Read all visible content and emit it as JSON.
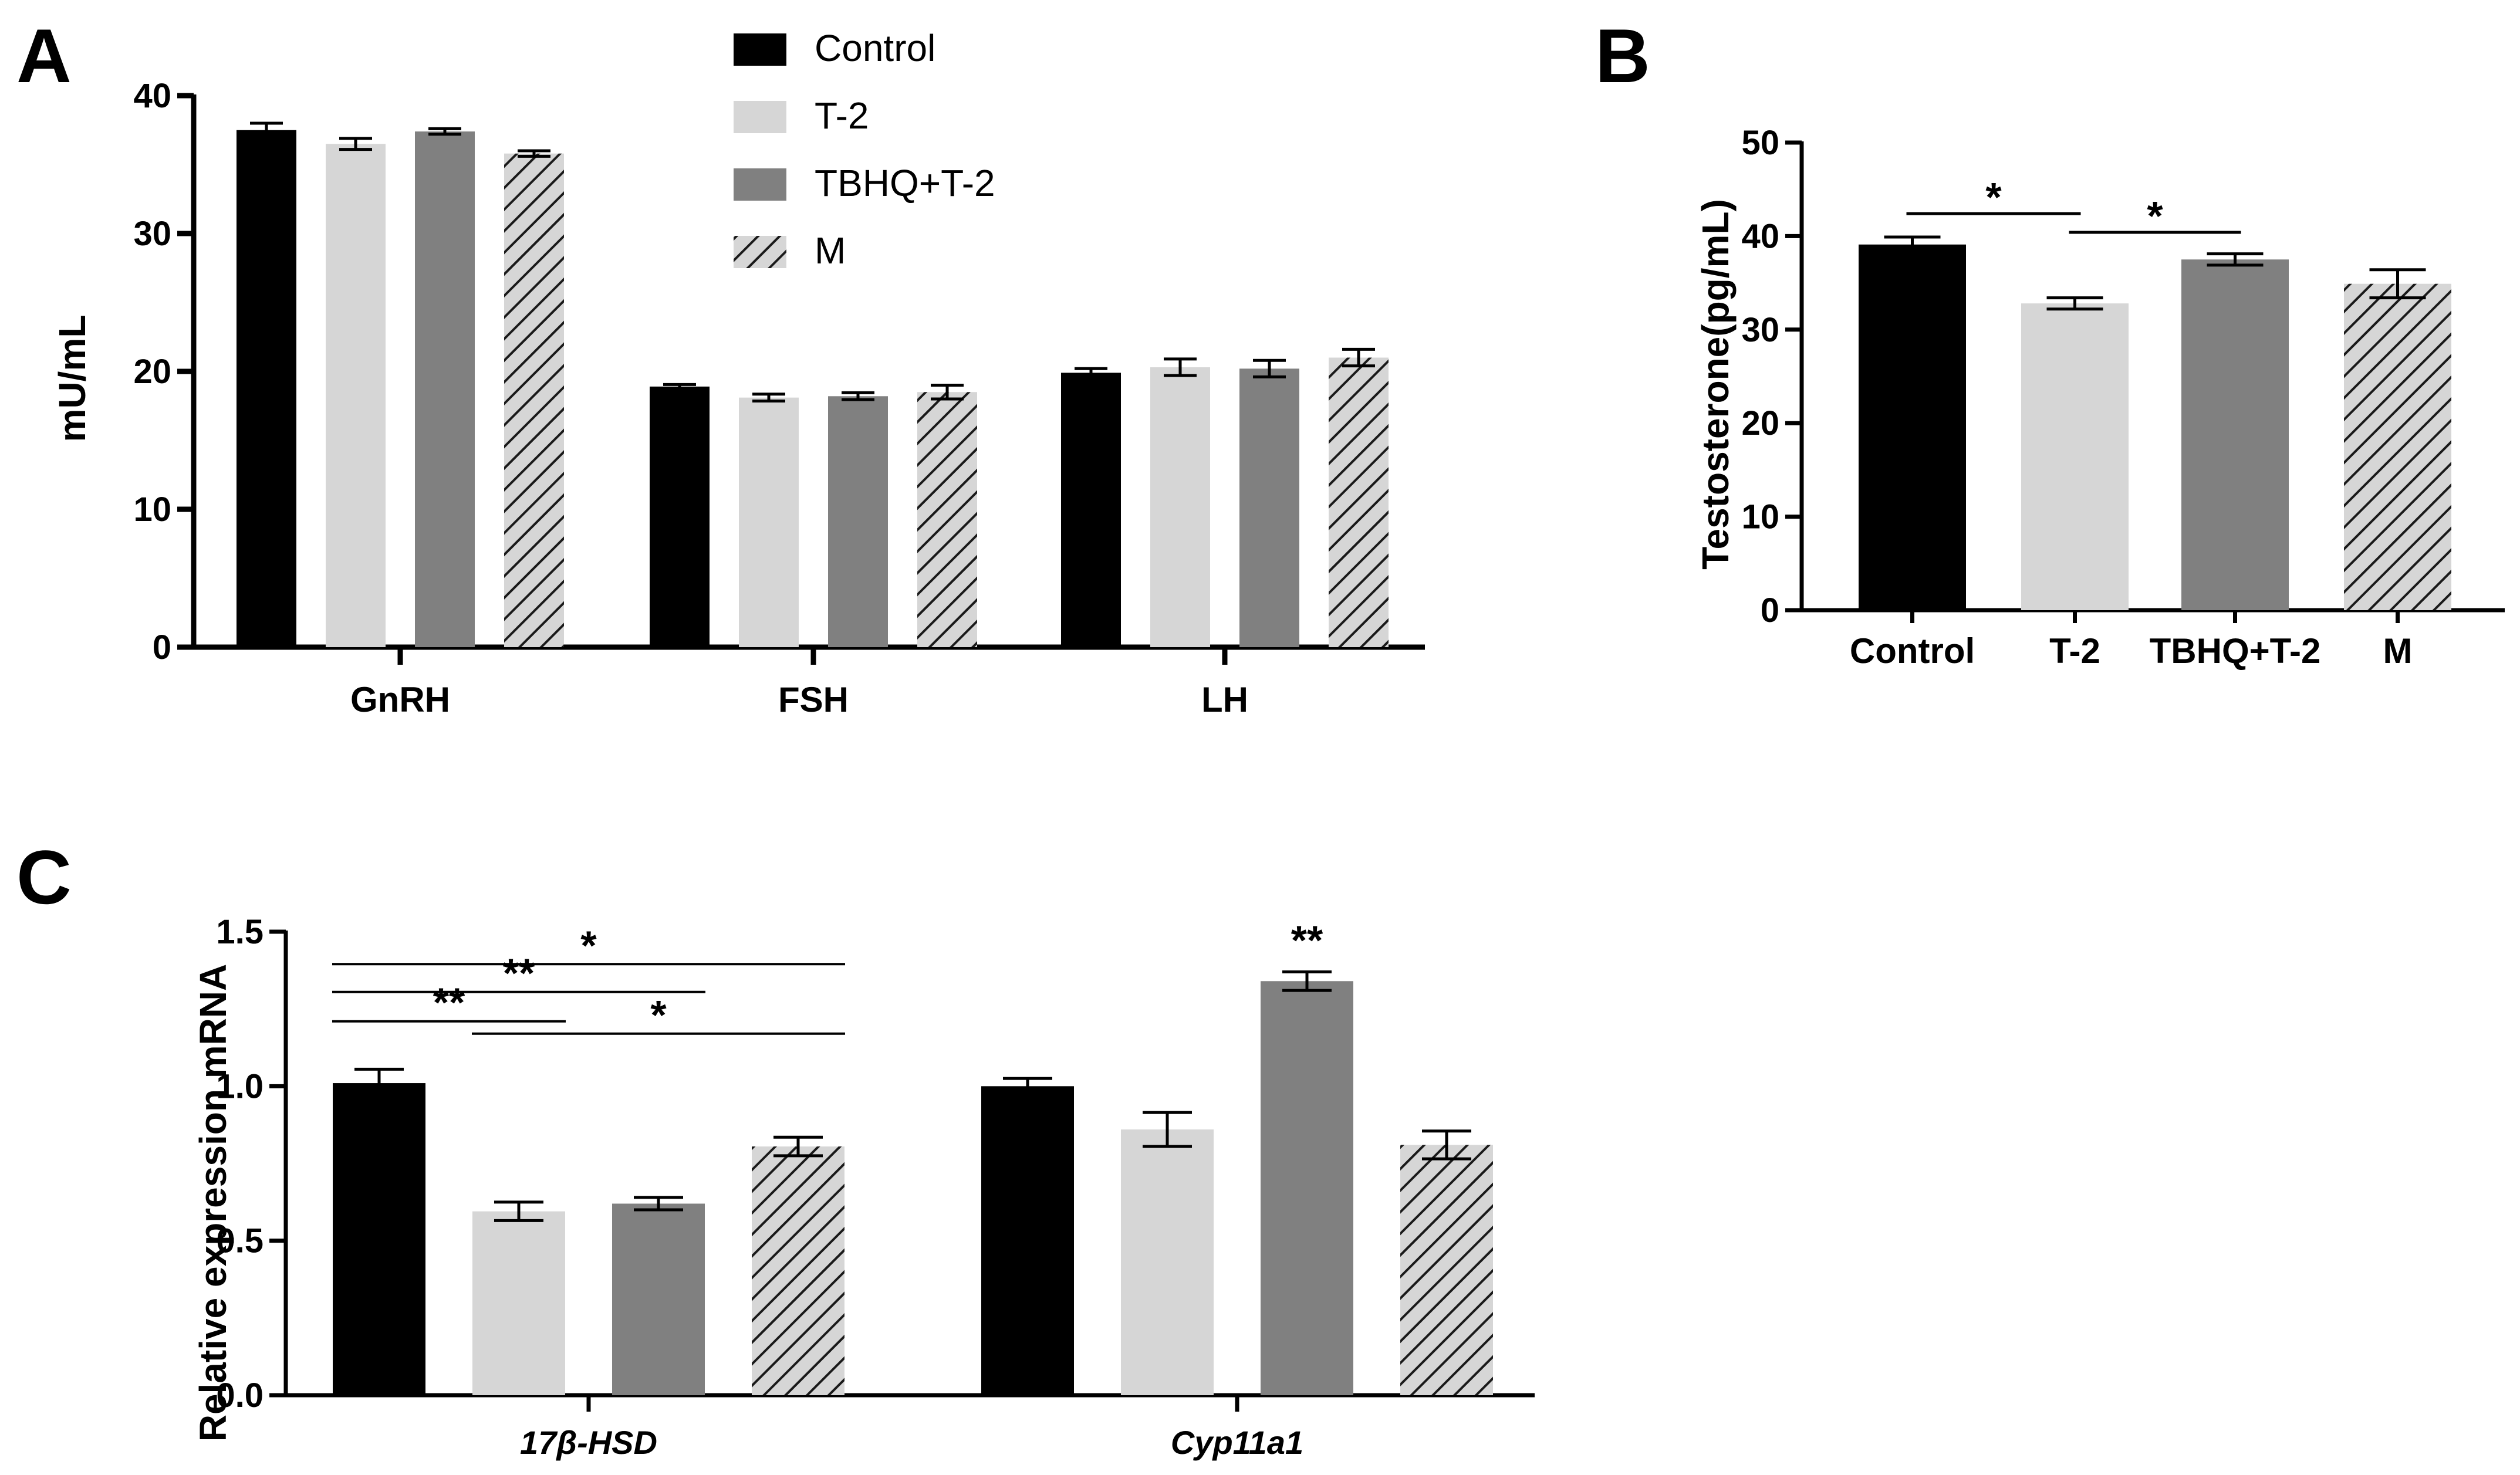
{
  "colors": {
    "control": "#000000",
    "t2": "#d6d6d6",
    "tbhq": "#808080",
    "m_bg": "#d6d6d6",
    "m_hatch": "#1a1a1a"
  },
  "legend": [
    "Control",
    "T-2",
    "TBHQ+T-2",
    "M"
  ],
  "chart_data": [
    {
      "panel": "A",
      "type": "bar",
      "ylabel": "mU/mL",
      "ylim": [
        0,
        40
      ],
      "yticks": [
        0,
        10,
        20,
        30,
        40
      ],
      "categories": [
        "GnRH",
        "FSH",
        "LH"
      ],
      "series": [
        {
          "name": "Control",
          "values": [
            37.5,
            18.9,
            19.9
          ],
          "errors": [
            0.5,
            0.15,
            0.3
          ]
        },
        {
          "name": "T-2",
          "values": [
            36.5,
            18.1,
            20.3
          ],
          "errors": [
            0.4,
            0.25,
            0.6
          ]
        },
        {
          "name": "TBHQ+T-2",
          "values": [
            37.4,
            18.2,
            20.2
          ],
          "errors": [
            0.2,
            0.25,
            0.6
          ]
        },
        {
          "name": "M",
          "values": [
            35.8,
            18.5,
            21.0
          ],
          "errors": [
            0.2,
            0.5,
            0.6
          ]
        }
      ]
    },
    {
      "panel": "B",
      "type": "bar",
      "ylabel": "Testosterone(pg/mL)",
      "ylim": [
        0,
        50
      ],
      "yticks": [
        0,
        10,
        20,
        30,
        40,
        50
      ],
      "categories": [
        "Control",
        "T-2",
        "TBHQ+T-2",
        "M"
      ],
      "values": [
        39.1,
        32.8,
        37.5,
        34.9
      ],
      "errors": [
        0.8,
        0.6,
        0.6,
        1.5
      ],
      "significance": [
        {
          "from": 0,
          "to": 1,
          "level": 42.4,
          "label": "*"
        },
        {
          "from": 1,
          "to": 2,
          "level": 40.4,
          "label": "*"
        }
      ]
    },
    {
      "panel": "C",
      "type": "bar",
      "ylabel": "Relative expression mRNA",
      "ylim": [
        0,
        1.5
      ],
      "yticks": [
        "0.0",
        "0.5",
        "1.0",
        "1.5"
      ],
      "categories": [
        "17β-HSD",
        "Cyp11a1"
      ],
      "series": [
        {
          "name": "Control",
          "values": [
            1.01,
            1.0
          ],
          "errors": [
            0.045,
            0.025
          ]
        },
        {
          "name": "T-2",
          "values": [
            0.595,
            0.86
          ],
          "errors": [
            0.03,
            0.055
          ]
        },
        {
          "name": "TBHQ+T-2",
          "values": [
            0.62,
            1.34
          ],
          "errors": [
            0.02,
            0.03
          ]
        },
        {
          "name": "M",
          "values": [
            0.805,
            0.81
          ],
          "errors": [
            0.03,
            0.045
          ]
        }
      ],
      "significance": [
        {
          "from": 0,
          "to": 3,
          "level": 1.395,
          "label": "*"
        },
        {
          "from": 0,
          "to": 2,
          "level": 1.305,
          "label": "**"
        },
        {
          "from": 0,
          "to": 1,
          "level": 1.21,
          "label": "**"
        },
        {
          "from": 1,
          "to": 3,
          "level": 1.17,
          "label": "*"
        }
      ],
      "bar_labels": [
        {
          "group": 1,
          "series": 2,
          "label": "**"
        }
      ]
    }
  ]
}
